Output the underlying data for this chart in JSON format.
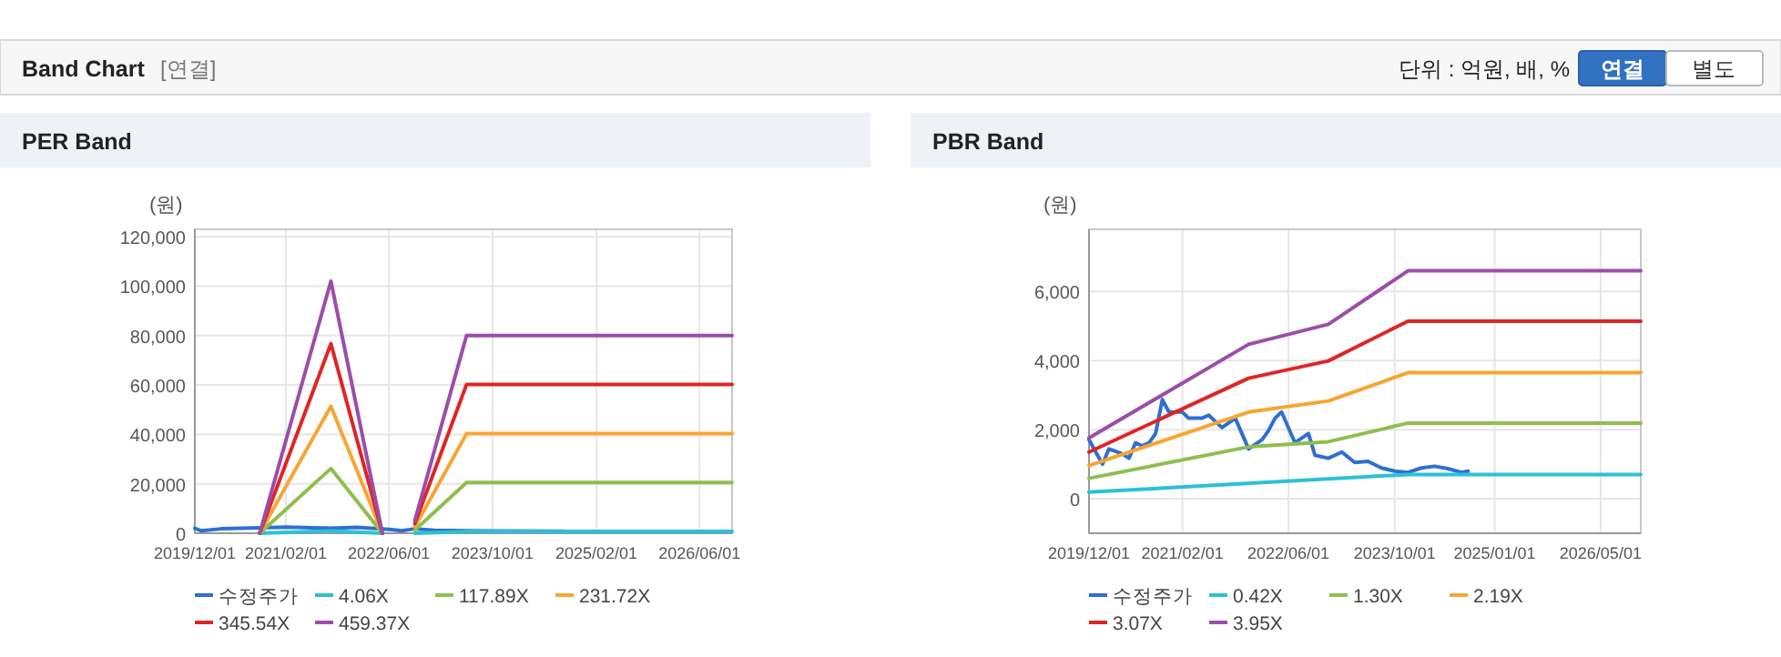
{
  "chart_data": [
    {
      "type": "line",
      "title": "PER Band",
      "ylabel": "(원)",
      "annotations": [
        "Band Chart",
        "[연결]",
        "단위 : 억원, 배, %",
        "연결",
        "별도"
      ],
      "xlim": [
        "2019-12-01",
        "2026-11-01"
      ],
      "xticks": [
        {
          "value": "2019-12-01",
          "label": "2019/12/01"
        },
        {
          "value": "2021-02-01",
          "label": "2021/02/01"
        },
        {
          "value": "2022-06-01",
          "label": "2022/06/01"
        },
        {
          "value": "2023-10-01",
          "label": "2023/10/01"
        },
        {
          "value": "2025-02-01",
          "label": "2025/02/01"
        },
        {
          "value": "2026-06-01",
          "label": "2026/06/01"
        }
      ],
      "ylim": [
        0,
        123000
      ],
      "yticks": [
        0,
        {
          "value": 20000,
          "label": "20,000"
        },
        {
          "value": 40000,
          "label": "40,000"
        },
        {
          "value": 60000,
          "label": "60,000"
        },
        {
          "value": 80000,
          "label": "80,000"
        },
        {
          "value": 100000,
          "label": "100,000"
        },
        {
          "value": 120000,
          "label": "120,000"
        }
      ],
      "grid": true,
      "legend": "bottom",
      "marker": "none",
      "line_style": "solid",
      "series": [
        {
          "name": "수정주가",
          "color": "#2f6fd1",
          "x": [
            "2019-12",
            "2020-01",
            "2020-04",
            "2020-10",
            "2021-02",
            "2021-09",
            "2022-01",
            "2022-06",
            "2022-08",
            "2022-10",
            "2023-01",
            "2023-10",
            "2024-09"
          ],
          "values": [
            2000,
            1000,
            1800,
            2200,
            2500,
            2000,
            2400,
            1600,
            1000,
            1800,
            1200,
            900,
            800
          ]
        },
        {
          "name": "4.06X",
          "color": "#2bc0d8",
          "x": [
            "2020-10",
            "2021-09",
            "2022-05",
            "2022-08",
            "2022-10",
            "2023-06",
            "2026-11"
          ],
          "values": [
            0,
            900,
            0,
            null,
            0,
            700,
            700
          ]
        },
        {
          "name": "117.89X",
          "color": "#8dbf4f",
          "x": [
            "2020-10",
            "2021-09",
            "2022-05",
            "2022-08",
            "2022-10",
            "2023-06",
            "2026-11"
          ],
          "values": [
            0,
            26200,
            0,
            null,
            1300,
            20500,
            20500
          ]
        },
        {
          "name": "231.72X",
          "color": "#f8a532",
          "x": [
            "2020-10",
            "2021-09",
            "2022-05",
            "2022-08",
            "2022-10",
            "2023-06",
            "2026-11"
          ],
          "values": [
            0,
            51400,
            0,
            null,
            2600,
            40300,
            40300
          ]
        },
        {
          "name": "345.54X",
          "color": "#df2525",
          "x": [
            "2020-10",
            "2021-09",
            "2022-05",
            "2022-08",
            "2022-10",
            "2023-06",
            "2026-11"
          ],
          "values": [
            0,
            76700,
            0,
            null,
            3900,
            60200,
            60200
          ]
        },
        {
          "name": "459.37X",
          "color": "#9b4ea9",
          "x": [
            "2020-10",
            "2021-09",
            "2022-05",
            "2022-08",
            "2022-10",
            "2023-06",
            "2026-11"
          ],
          "values": [
            0,
            102000,
            0,
            null,
            5200,
            80000,
            80000
          ]
        }
      ]
    },
    {
      "type": "line",
      "title": "PBR Band",
      "ylabel": "(원)",
      "xlim": [
        "2019-12-01",
        "2026-11-01"
      ],
      "xticks": [
        {
          "value": "2019-12-01",
          "label": "2019/12/01"
        },
        {
          "value": "2021-02-01",
          "label": "2021/02/01"
        },
        {
          "value": "2022-06-01",
          "label": "2022/06/01"
        },
        {
          "value": "2023-10-01",
          "label": "2023/10/01"
        },
        {
          "value": "2025-01-01",
          "label": "2025/01/01"
        },
        {
          "value": "2026-05-01",
          "label": "2026/05/01"
        }
      ],
      "ylim": [
        -1000,
        7800
      ],
      "yticks": [
        0,
        {
          "value": 2000,
          "label": "2,000"
        },
        {
          "value": 4000,
          "label": "4,000"
        },
        {
          "value": 6000,
          "label": "6,000"
        }
      ],
      "grid": true,
      "legend": "bottom",
      "marker": "none",
      "line_style": "solid",
      "series": [
        {
          "name": "수정주가",
          "color": "#2f6fd1",
          "x": [
            "2019-12",
            "2020-01",
            "2020-02",
            "2020-03",
            "2020-05",
            "2020-06",
            "2020-07",
            "2020-08",
            "2020-09",
            "2020-10",
            "2020-11",
            "2020-12",
            "2021-02",
            "2021-03",
            "2021-05",
            "2021-06",
            "2021-08",
            "2021-10",
            "2021-12",
            "2022-02",
            "2022-03",
            "2022-04",
            "2022-05",
            "2022-07",
            "2022-09",
            "2022-10",
            "2022-12",
            "2023-02",
            "2023-04",
            "2023-06",
            "2023-08",
            "2023-10",
            "2023-12",
            "2024-02",
            "2024-04",
            "2024-06",
            "2024-08",
            "2024-09"
          ],
          "values": [
            1710,
            1350,
            1000,
            1440,
            1300,
            1170,
            1620,
            1530,
            1620,
            1890,
            2870,
            2510,
            2510,
            2330,
            2330,
            2420,
            2060,
            2330,
            1440,
            1710,
            1960,
            2330,
            2510,
            1620,
            1890,
            1260,
            1170,
            1350,
            1050,
            1080,
            890,
            800,
            760,
            890,
            940,
            870,
            760,
            800
          ]
        },
        {
          "name": "0.42X",
          "color": "#2bc0d8",
          "x": [
            "2019-12",
            "2023-12",
            "2026-11"
          ],
          "values": [
            190,
            700,
            700
          ]
        },
        {
          "name": "1.30X",
          "color": "#8dbf4f",
          "x": [
            "2019-12",
            "2021-12",
            "2022-12",
            "2023-12",
            "2026-11"
          ],
          "values": [
            590,
            1500,
            1650,
            2190,
            2190
          ]
        },
        {
          "name": "2.19X",
          "color": "#f8a532",
          "x": [
            "2019-12",
            "2021-12",
            "2022-12",
            "2023-12",
            "2026-11"
          ],
          "values": [
            960,
            2510,
            2830,
            3650,
            3650
          ]
        },
        {
          "name": "3.07X",
          "color": "#df2525",
          "x": [
            "2019-12",
            "2021-12",
            "2022-12",
            "2023-12",
            "2026-11"
          ],
          "values": [
            1350,
            3490,
            3990,
            5140,
            5140
          ]
        },
        {
          "name": "3.95X",
          "color": "#9b4ea9",
          "x": [
            "2019-12",
            "2021-12",
            "2022-12",
            "2023-12",
            "2026-11"
          ],
          "values": [
            1760,
            4470,
            5050,
            6600,
            6600
          ]
        }
      ]
    }
  ]
}
